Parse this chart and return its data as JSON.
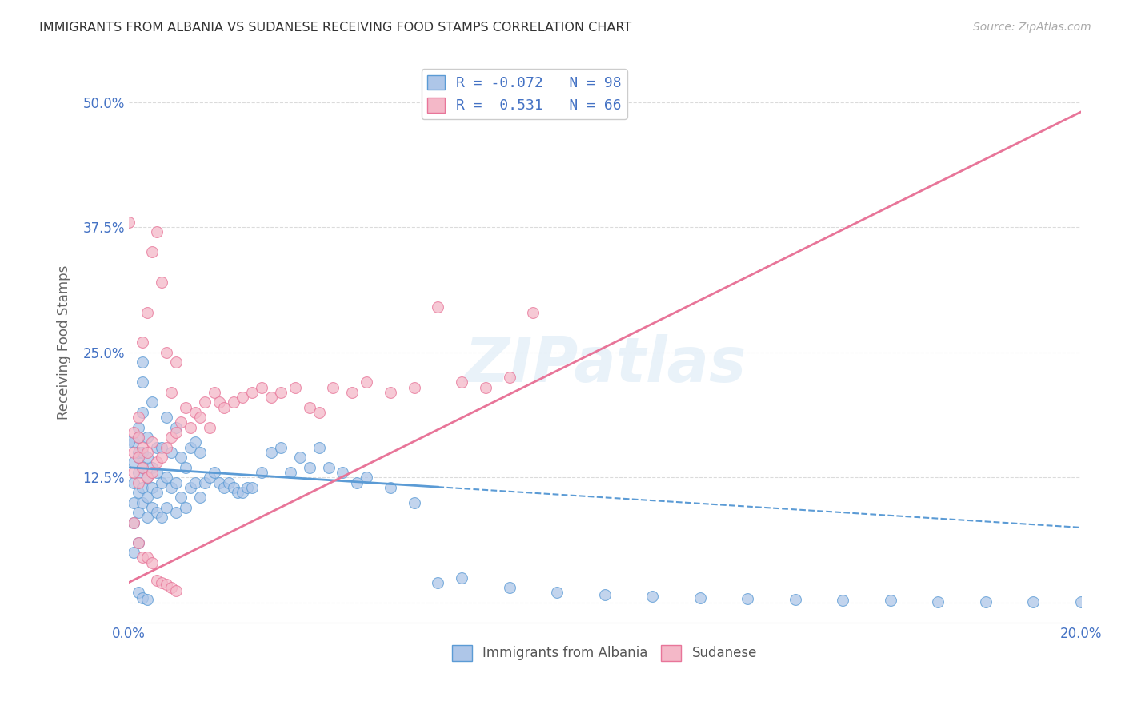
{
  "title": "IMMIGRANTS FROM ALBANIA VS SUDANESE RECEIVING FOOD STAMPS CORRELATION CHART",
  "source": "Source: ZipAtlas.com",
  "ylabel": "Receiving Food Stamps",
  "xlim": [
    0.0,
    0.2
  ],
  "ylim": [
    -0.02,
    0.54
  ],
  "yticks": [
    0.0,
    0.125,
    0.25,
    0.375,
    0.5
  ],
  "ytick_labels": [
    "",
    "12.5%",
    "25.0%",
    "37.5%",
    "50.0%"
  ],
  "xticks": [
    0.0,
    0.04,
    0.08,
    0.12,
    0.16,
    0.2
  ],
  "xtick_labels": [
    "0.0%",
    "",
    "",
    "",
    "",
    "20.0%"
  ],
  "albania_color": "#aec6e8",
  "albania_edge": "#5b9bd5",
  "sudanese_color": "#f4b8c8",
  "sudanese_edge": "#e87599",
  "albania_R": -0.072,
  "albania_N": 98,
  "sudanese_R": 0.531,
  "sudanese_N": 66,
  "watermark": "ZIPatlas",
  "background_color": "#ffffff",
  "grid_color": "#cccccc",
  "albania_line_intercept": 0.135,
  "albania_line_slope": -0.3,
  "albania_line_solid_end": 0.065,
  "sudan_line_intercept": 0.02,
  "sudan_line_slope": 2.35,
  "albania_scatter_x": [
    0.001,
    0.001,
    0.001,
    0.001,
    0.001,
    0.002,
    0.002,
    0.002,
    0.002,
    0.002,
    0.002,
    0.002,
    0.002,
    0.003,
    0.003,
    0.003,
    0.003,
    0.003,
    0.003,
    0.003,
    0.004,
    0.004,
    0.004,
    0.004,
    0.004,
    0.005,
    0.005,
    0.005,
    0.005,
    0.006,
    0.006,
    0.006,
    0.006,
    0.007,
    0.007,
    0.007,
    0.008,
    0.008,
    0.008,
    0.009,
    0.009,
    0.01,
    0.01,
    0.01,
    0.011,
    0.011,
    0.012,
    0.012,
    0.013,
    0.013,
    0.014,
    0.014,
    0.015,
    0.015,
    0.016,
    0.017,
    0.018,
    0.019,
    0.02,
    0.021,
    0.022,
    0.023,
    0.024,
    0.025,
    0.026,
    0.028,
    0.03,
    0.032,
    0.034,
    0.036,
    0.038,
    0.04,
    0.042,
    0.045,
    0.048,
    0.05,
    0.055,
    0.06,
    0.065,
    0.07,
    0.08,
    0.09,
    0.1,
    0.11,
    0.12,
    0.13,
    0.14,
    0.15,
    0.16,
    0.17,
    0.18,
    0.19,
    0.2,
    0.0,
    0.001,
    0.002,
    0.003,
    0.004
  ],
  "albania_scatter_y": [
    0.1,
    0.12,
    0.14,
    0.16,
    0.08,
    0.09,
    0.11,
    0.13,
    0.145,
    0.15,
    0.165,
    0.175,
    0.06,
    0.1,
    0.115,
    0.135,
    0.15,
    0.19,
    0.22,
    0.24,
    0.085,
    0.105,
    0.125,
    0.145,
    0.165,
    0.095,
    0.115,
    0.135,
    0.2,
    0.09,
    0.11,
    0.13,
    0.155,
    0.085,
    0.12,
    0.155,
    0.095,
    0.125,
    0.185,
    0.115,
    0.15,
    0.09,
    0.12,
    0.175,
    0.105,
    0.145,
    0.095,
    0.135,
    0.115,
    0.155,
    0.12,
    0.16,
    0.105,
    0.15,
    0.12,
    0.125,
    0.13,
    0.12,
    0.115,
    0.12,
    0.115,
    0.11,
    0.11,
    0.115,
    0.115,
    0.13,
    0.15,
    0.155,
    0.13,
    0.145,
    0.135,
    0.155,
    0.135,
    0.13,
    0.12,
    0.125,
    0.115,
    0.1,
    0.02,
    0.025,
    0.015,
    0.01,
    0.008,
    0.006,
    0.005,
    0.004,
    0.003,
    0.002,
    0.002,
    0.001,
    0.001,
    0.001,
    0.001,
    0.16,
    0.05,
    0.01,
    0.005,
    0.003
  ],
  "sudanese_scatter_x": [
    0.001,
    0.001,
    0.001,
    0.002,
    0.002,
    0.002,
    0.002,
    0.003,
    0.003,
    0.003,
    0.004,
    0.004,
    0.004,
    0.005,
    0.005,
    0.005,
    0.006,
    0.006,
    0.007,
    0.007,
    0.008,
    0.008,
    0.009,
    0.009,
    0.01,
    0.01,
    0.011,
    0.012,
    0.013,
    0.014,
    0.015,
    0.016,
    0.017,
    0.018,
    0.019,
    0.02,
    0.022,
    0.024,
    0.026,
    0.028,
    0.03,
    0.032,
    0.035,
    0.038,
    0.04,
    0.043,
    0.047,
    0.05,
    0.055,
    0.06,
    0.065,
    0.07,
    0.075,
    0.08,
    0.085,
    0.0,
    0.001,
    0.002,
    0.003,
    0.004,
    0.005,
    0.006,
    0.007,
    0.008,
    0.009,
    0.01
  ],
  "sudanese_scatter_y": [
    0.13,
    0.15,
    0.17,
    0.12,
    0.145,
    0.165,
    0.185,
    0.135,
    0.155,
    0.26,
    0.125,
    0.15,
    0.29,
    0.13,
    0.16,
    0.35,
    0.14,
    0.37,
    0.145,
    0.32,
    0.155,
    0.25,
    0.165,
    0.21,
    0.17,
    0.24,
    0.18,
    0.195,
    0.175,
    0.19,
    0.185,
    0.2,
    0.175,
    0.21,
    0.2,
    0.195,
    0.2,
    0.205,
    0.21,
    0.215,
    0.205,
    0.21,
    0.215,
    0.195,
    0.19,
    0.215,
    0.21,
    0.22,
    0.21,
    0.215,
    0.295,
    0.22,
    0.215,
    0.225,
    0.29,
    0.38,
    0.08,
    0.06,
    0.045,
    0.045,
    0.04,
    0.022,
    0.02,
    0.018,
    0.015,
    0.012
  ]
}
